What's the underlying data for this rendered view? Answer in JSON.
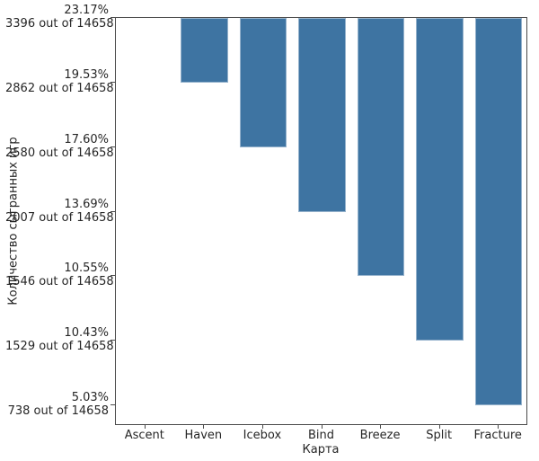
{
  "figure": {
    "background_color": "#ffffff",
    "bar_color": "#3e74a2",
    "bar_edge_color": "rgba(255,255,255,0.45)",
    "spine_color": "#4a4a4a",
    "text_color": "#262626"
  },
  "chart_data": {
    "type": "bar",
    "title": "",
    "xlabel": "Карта",
    "ylabel": "Количество сыгранных игр",
    "total_games": 14658,
    "categories": [
      "Ascent",
      "Haven",
      "Icebox",
      "Bind",
      "Breeze",
      "Split",
      "Fracture"
    ],
    "values": [
      3396,
      2862,
      2580,
      2007,
      1546,
      1529,
      738
    ],
    "percentages": [
      "23.17%",
      "19.53%",
      "17.60%",
      "13.69%",
      "10.55%",
      "10.43%",
      "5.03%"
    ],
    "ytick_labels": [
      {
        "percent": "23.17%",
        "count": "3396 out of 14658"
      },
      {
        "percent": "19.53%",
        "count": "2862 out of 14658"
      },
      {
        "percent": "17.60%",
        "count": "2580 out of 14658"
      },
      {
        "percent": "13.69%",
        "count": "2007 out of 14658"
      },
      {
        "percent": "10.55%",
        "count": "1546 out of 14658"
      },
      {
        "percent": "10.43%",
        "count": "1529 out of 14658"
      },
      {
        "percent": "5.03%",
        "count": "738 out of 14658"
      }
    ],
    "layout_hints": {
      "y_axis_inverted": true,
      "bars_descend_from_top_to_their_tick": true,
      "yticks_equally_spaced": true,
      "grid": false,
      "legend": "none"
    }
  }
}
